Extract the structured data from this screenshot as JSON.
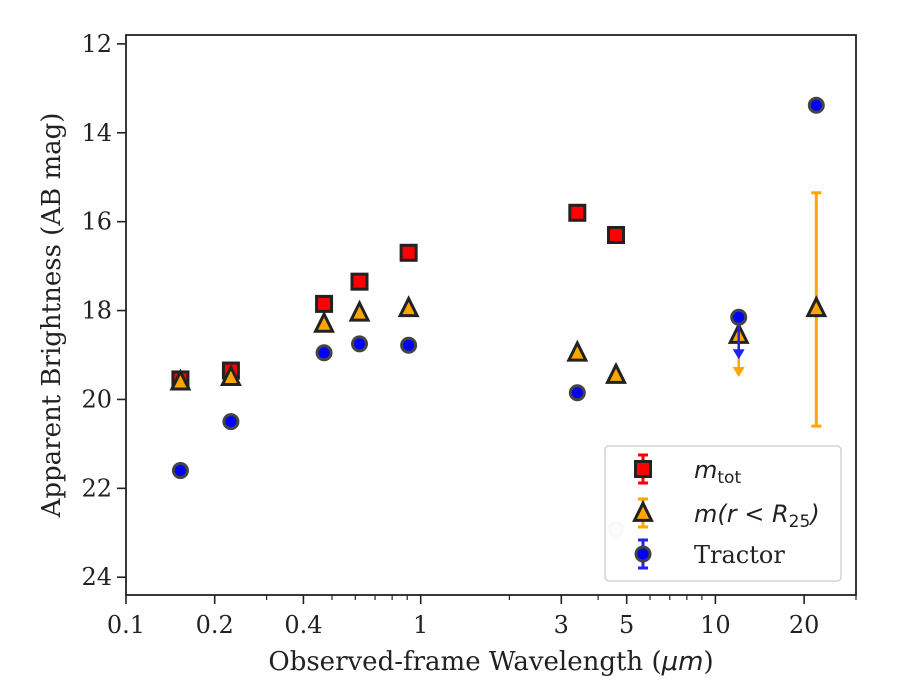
{
  "chart_data": {
    "type": "scatter",
    "xlabel_prefix": "Observed-frame Wavelength (",
    "xlabel_unit": "μm",
    "xlabel_suffix": ")",
    "ylabel": "Apparent Brightness (AB mag)",
    "x_scale": "log",
    "xlim": [
      0.1,
      30
    ],
    "ylim": [
      24.4,
      11.8
    ],
    "y_inverted": true,
    "grid": false,
    "legend_position": "lower-right",
    "x_ticks": [
      {
        "value": 0.1,
        "label": "0.1"
      },
      {
        "value": 0.2,
        "label": "0.2"
      },
      {
        "value": 0.4,
        "label": "0.4"
      },
      {
        "value": 1,
        "label": "1"
      },
      {
        "value": 3,
        "label": "3"
      },
      {
        "value": 5,
        "label": "5"
      },
      {
        "value": 10,
        "label": "10"
      },
      {
        "value": 20,
        "label": "20"
      }
    ],
    "y_ticks": [
      {
        "value": 12,
        "label": "12"
      },
      {
        "value": 14,
        "label": "14"
      },
      {
        "value": 16,
        "label": "16"
      },
      {
        "value": 18,
        "label": "18"
      },
      {
        "value": 20,
        "label": "20"
      },
      {
        "value": 22,
        "label": "22"
      },
      {
        "value": 24,
        "label": "24"
      }
    ],
    "series": [
      {
        "key": "mtot",
        "legend_italic": "m",
        "legend_sub": "tot",
        "marker": "square",
        "color": "#ff0000",
        "edge_color": "#222222",
        "points": [
          {
            "x": 0.153,
            "y": 19.55,
            "err": 0.15
          },
          {
            "x": 0.227,
            "y": 19.35,
            "err": 0.12
          },
          {
            "x": 0.47,
            "y": 17.85
          },
          {
            "x": 0.62,
            "y": 17.35
          },
          {
            "x": 0.91,
            "y": 16.7
          },
          {
            "x": 3.4,
            "y": 15.8
          },
          {
            "x": 4.6,
            "y": 16.3
          }
        ]
      },
      {
        "key": "mr25",
        "legend_italic": "m",
        "legend_rest": "(r < R",
        "legend_sub": "25",
        "legend_close": ")",
        "marker": "triangle",
        "color": "#ffa500",
        "error_color": "#ffa500",
        "edge_color": "#222222",
        "points": [
          {
            "x": 0.153,
            "y": 19.6
          },
          {
            "x": 0.227,
            "y": 19.5
          },
          {
            "x": 0.47,
            "y": 18.3
          },
          {
            "x": 0.62,
            "y": 18.05
          },
          {
            "x": 0.91,
            "y": 17.95
          },
          {
            "x": 3.4,
            "y": 18.95
          },
          {
            "x": 4.6,
            "y": 19.45
          },
          {
            "x": 12.0,
            "y": 18.55,
            "upper_limit": true,
            "arrow_to": 19.45
          },
          {
            "x": 22.0,
            "y": 17.95,
            "err_low": 15.35,
            "err_high": 20.6
          }
        ]
      },
      {
        "key": "tractor",
        "legend": "Tractor",
        "marker": "circle",
        "color": "#0000ff",
        "error_color": "#2222ee",
        "edge_color": "#444444",
        "points": [
          {
            "x": 0.153,
            "y": 21.6
          },
          {
            "x": 0.227,
            "y": 20.5
          },
          {
            "x": 0.47,
            "y": 18.95
          },
          {
            "x": 0.62,
            "y": 18.75
          },
          {
            "x": 0.91,
            "y": 18.78
          },
          {
            "x": 3.4,
            "y": 19.85
          },
          {
            "x": 4.6,
            "y": 22.92,
            "faded": true
          },
          {
            "x": 12.0,
            "y": 18.15,
            "upper_limit": true,
            "arrow_to": 19.05
          },
          {
            "x": 22.0,
            "y": 13.38
          }
        ]
      }
    ]
  }
}
